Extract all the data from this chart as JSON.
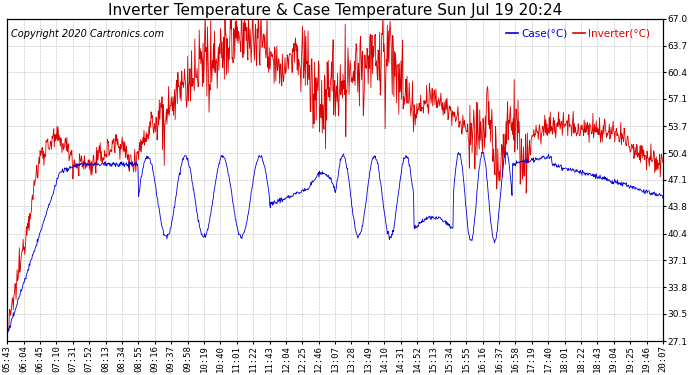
{
  "title": "Inverter Temperature & Case Temperature Sun Jul 19 20:24",
  "copyright": "Copyright 2020 Cartronics.com",
  "legend_case": "Case(°C)",
  "legend_inverter": "Inverter(°C)",
  "ylabel_right_ticks": [
    27.1,
    30.5,
    33.8,
    37.1,
    40.4,
    43.8,
    47.1,
    50.4,
    53.7,
    57.1,
    60.4,
    63.7,
    67.0
  ],
  "ylim": [
    27.1,
    67.0
  ],
  "bg_color": "#ffffff",
  "grid_color": "#bbbbbb",
  "case_color": "#0000dd",
  "inverter_color": "#dd0000",
  "title_fontsize": 11,
  "copyright_fontsize": 7,
  "tick_fontsize": 6.5,
  "time_labels": [
    "05:43",
    "06:04",
    "06:45",
    "07:10",
    "07:31",
    "07:52",
    "08:13",
    "08:34",
    "08:55",
    "09:16",
    "09:37",
    "09:58",
    "10:19",
    "10:40",
    "11:01",
    "11:22",
    "11:43",
    "12:04",
    "12:25",
    "12:46",
    "13:07",
    "13:28",
    "13:49",
    "14:10",
    "14:31",
    "14:52",
    "15:13",
    "15:34",
    "15:55",
    "16:16",
    "16:37",
    "16:58",
    "17:19",
    "17:40",
    "18:01",
    "18:22",
    "18:43",
    "19:04",
    "19:25",
    "19:46",
    "20:07"
  ]
}
